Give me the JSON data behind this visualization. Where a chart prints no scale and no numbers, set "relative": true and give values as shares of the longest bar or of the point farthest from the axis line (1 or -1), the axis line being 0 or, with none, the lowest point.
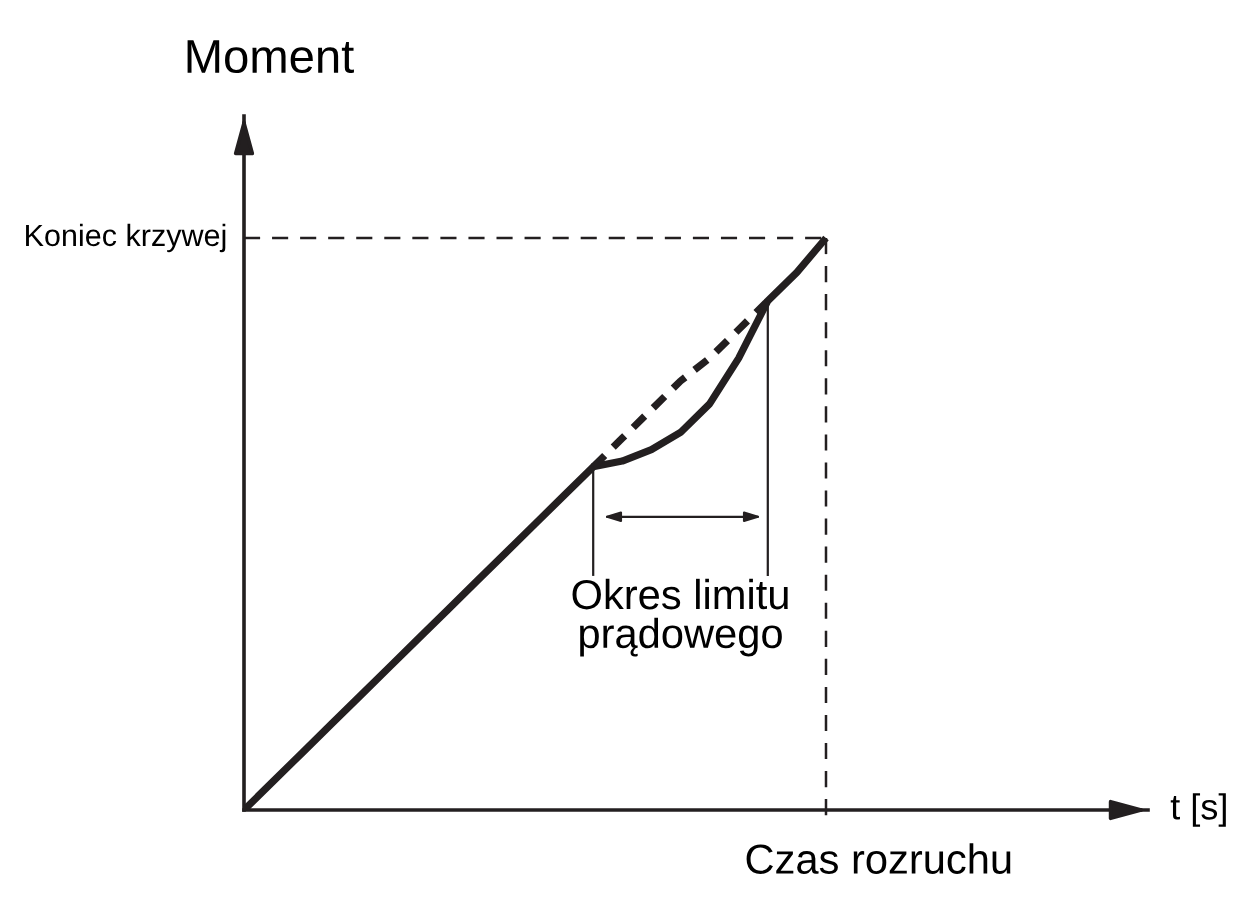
{
  "chart_data": {
    "type": "line",
    "relative": true,
    "ylabel": "Moment",
    "categories": [
      null,
      null,
      null,
      null,
      null,
      null,
      null,
      null,
      null,
      null,
      null,
      null,
      null,
      null,
      null,
      null,
      null,
      null,
      null,
      null,
      null
    ],
    "series": [
      {
        "color": "#231f20",
        "values": [
          0,
          0.05,
          0.1,
          0.15,
          0.2,
          0.25,
          0.3,
          0.35,
          0.4,
          0.45,
          0.5,
          0.55,
          0.6,
          0.61,
          0.63,
          0.66,
          0.71,
          0.79,
          0.89,
          0.94,
          1.0
        ],
        "line_style": "solid"
      },
      {
        "color": "#231f20",
        "values": [
          null,
          null,
          null,
          null,
          null,
          null,
          null,
          null,
          null,
          null,
          null,
          null,
          0.6,
          0.65,
          0.7,
          0.75,
          0.79,
          0.84,
          0.89,
          null,
          null
        ],
        "line_style": "dashed"
      }
    ],
    "ref_lines": [
      {
        "axis": "y",
        "value": 1,
        "label": "Koniec krzywej",
        "line_style": "dashed",
        "color": "#231f20"
      }
    ],
    "annotations": [
      "Okres limitu\nprądowego",
      "Czas rozruchu",
      "t [s]"
    ]
  }
}
